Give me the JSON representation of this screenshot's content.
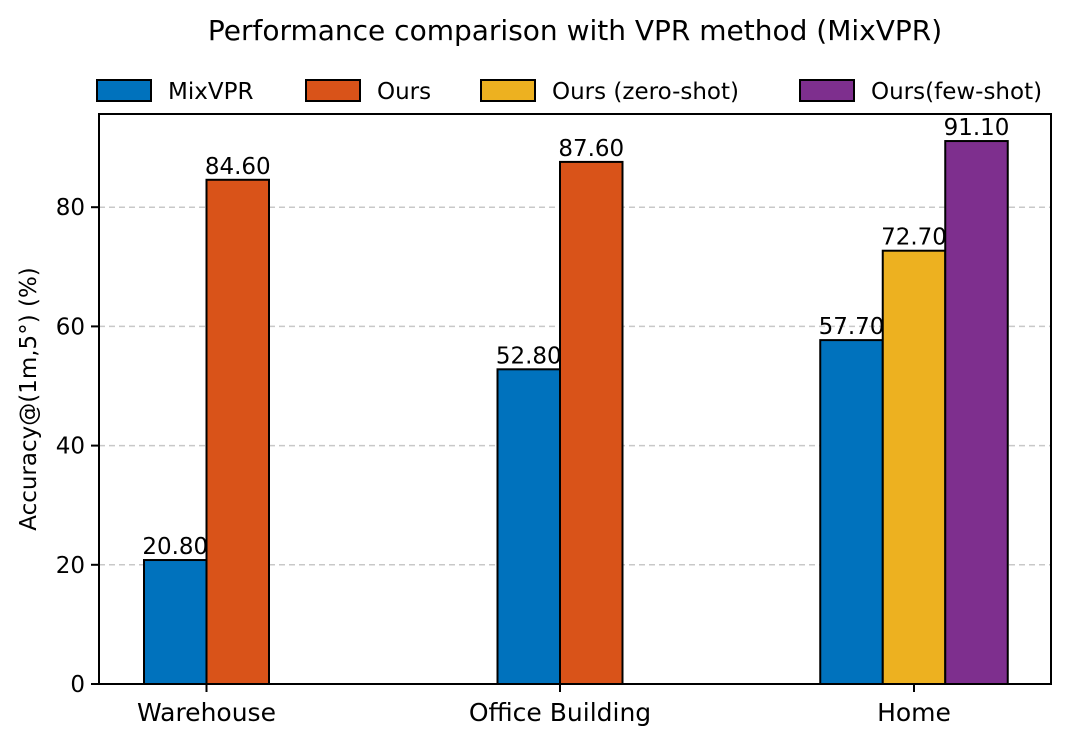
{
  "chart_data": {
    "type": "bar",
    "title": "Performance comparison with VPR method (MixVPR)",
    "xlabel": "",
    "ylabel": "Accuracy@(1m,5°) (%)",
    "ylim": [
      0,
      92
    ],
    "yticks": [
      0,
      20,
      40,
      60,
      80
    ],
    "grid": "y-dashed",
    "legend_position": "top",
    "categories": [
      "Warehouse",
      "Office Building",
      "Home"
    ],
    "series": [
      {
        "name": "MixVPR",
        "color": "#0072BD",
        "values": [
          20.8,
          52.8,
          57.7
        ]
      },
      {
        "name": "Ours",
        "color": "#D95319",
        "values": [
          84.6,
          87.6,
          null
        ]
      },
      {
        "name": "Ours (zero-shot)",
        "color": "#EDB120",
        "values": [
          null,
          null,
          72.7
        ]
      },
      {
        "name": "Ours(few-shot)",
        "color": "#7E2F8E",
        "values": [
          null,
          null,
          91.1
        ]
      }
    ],
    "data_labels": [
      "20.80",
      "84.60",
      "52.80",
      "87.60",
      "57.70",
      "72.70",
      "91.10"
    ]
  }
}
